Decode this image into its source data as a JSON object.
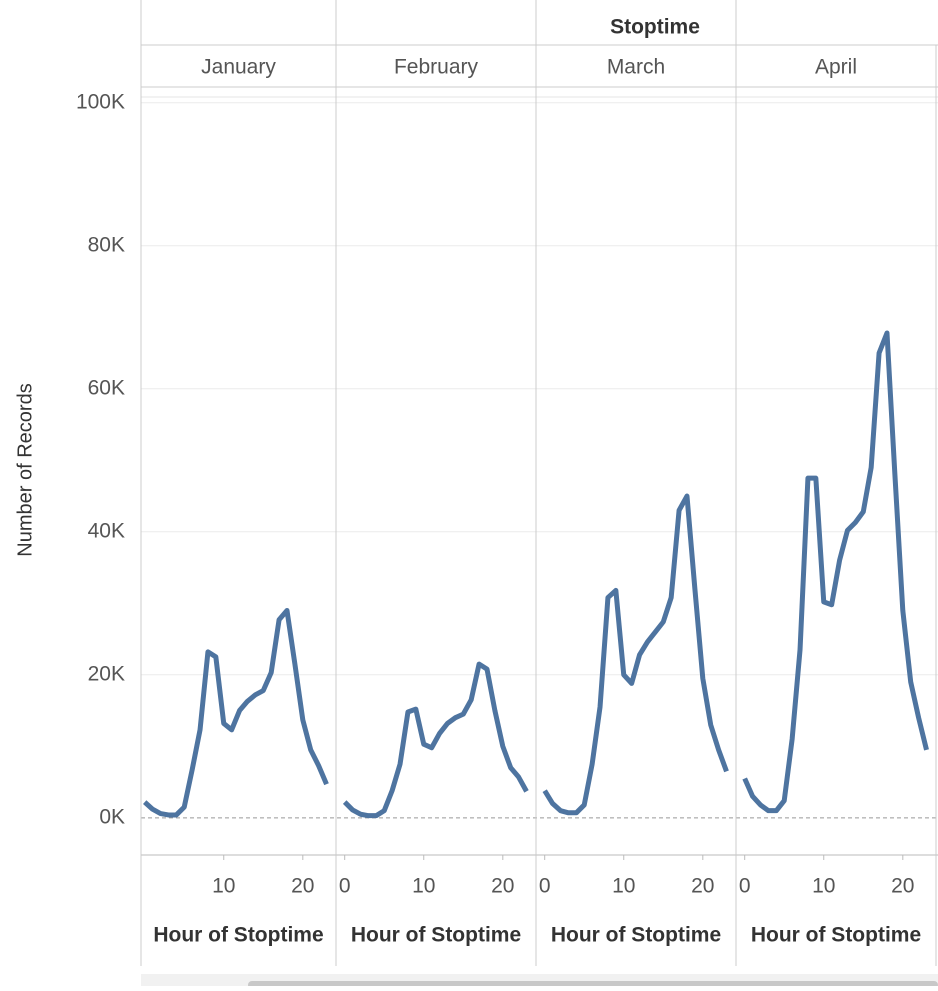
{
  "chart_data": {
    "type": "line",
    "title": "Stoptime",
    "y_label": "Number of Records",
    "x_label": "Hour of Stoptime",
    "color": "#4e74a0",
    "grid": true,
    "x": [
      0,
      1,
      2,
      3,
      4,
      5,
      6,
      7,
      8,
      9,
      10,
      11,
      12,
      13,
      14,
      15,
      16,
      17,
      18,
      19,
      20,
      21,
      22,
      23
    ],
    "xlim": [
      -1.1,
      24.2
    ],
    "ylim": [
      -5200,
      102200
    ],
    "yticks": [
      {
        "value": 0,
        "label": "0K"
      },
      {
        "value": 20000,
        "label": "20K"
      },
      {
        "value": 40000,
        "label": "40K"
      },
      {
        "value": 60000,
        "label": "60K"
      },
      {
        "value": 80000,
        "label": "80K"
      },
      {
        "value": 100000,
        "label": "100K"
      }
    ],
    "panels": [
      {
        "label": "January",
        "xticks": [
          10,
          20
        ],
        "values": [
          2200,
          1200,
          600,
          400,
          400,
          1500,
          6700,
          12300,
          23200,
          22500,
          13200,
          12300,
          15000,
          16300,
          17200,
          17800,
          20300,
          27700,
          29000,
          21500,
          13700,
          9500,
          7300,
          4700
        ]
      },
      {
        "label": "February",
        "xticks": [
          0,
          10,
          20
        ],
        "values": [
          2200,
          1100,
          500,
          300,
          300,
          1000,
          3800,
          7500,
          14800,
          15200,
          10300,
          9800,
          11800,
          13200,
          14000,
          14500,
          16500,
          21500,
          20800,
          15000,
          10000,
          7000,
          5700,
          3700
        ]
      },
      {
        "label": "March",
        "xticks": [
          0,
          10,
          20
        ],
        "values": [
          3800,
          2000,
          1000,
          700,
          700,
          1800,
          7500,
          15500,
          30800,
          31800,
          20000,
          18800,
          22800,
          24600,
          26000,
          27400,
          30800,
          43000,
          45000,
          32000,
          19500,
          13000,
          9500,
          6500
        ]
      },
      {
        "label": "April",
        "xticks": [
          0,
          10,
          20
        ],
        "values": [
          5500,
          3000,
          1800,
          1000,
          1000,
          2400,
          11000,
          23500,
          47500,
          47500,
          30200,
          29800,
          36000,
          40200,
          41300,
          42800,
          49000,
          65000,
          67800,
          48000,
          29000,
          19000,
          14000,
          9500
        ]
      }
    ]
  }
}
